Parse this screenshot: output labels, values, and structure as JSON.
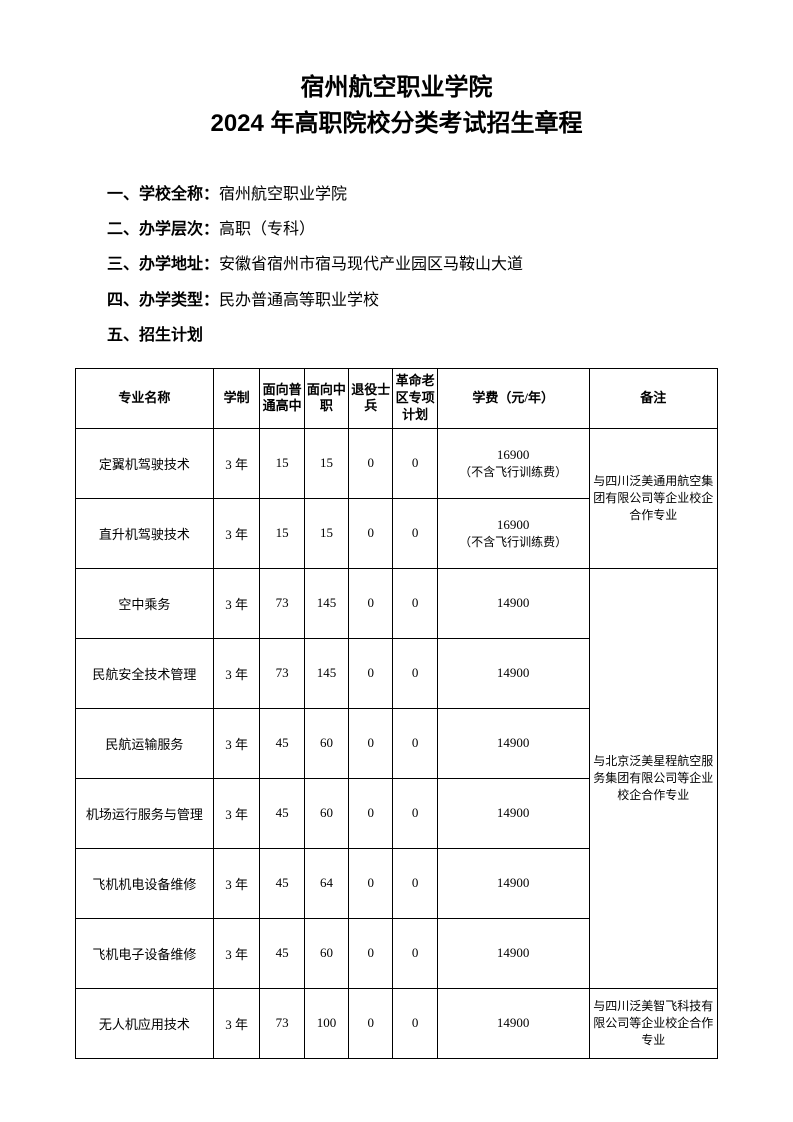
{
  "title_line1": "宿州航空职业学院",
  "title_line2": "2024 年高职院校分类考试招生章程",
  "info_items": [
    {
      "label": "一、学校全称：",
      "value": "宿州航空职业学院"
    },
    {
      "label": "二、办学层次：",
      "value": "高职（专科）"
    },
    {
      "label": "三、办学地址：",
      "value": "安徽省宿州市宿马现代产业园区马鞍山大道"
    },
    {
      "label": "四、办学类型：",
      "value": "民办普通高等职业学校"
    },
    {
      "label": "五、招生计划",
      "value": ""
    }
  ],
  "table": {
    "headers": [
      "专业名称",
      "学制",
      "面向普通高中",
      "面向中职",
      "退役士兵",
      "革命老区专项计划",
      "学费（元/年）",
      "备注"
    ],
    "rows": [
      {
        "name": "定翼机驾驶技术",
        "duration": "3 年",
        "highschool": "15",
        "vocational": "15",
        "veteran": "0",
        "revolution": "0",
        "tuition": "16900",
        "tuition_note": "（不含飞行训练费）"
      },
      {
        "name": "直升机驾驶技术",
        "duration": "3 年",
        "highschool": "15",
        "vocational": "15",
        "veteran": "0",
        "revolution": "0",
        "tuition": "16900",
        "tuition_note": "（不含飞行训练费）"
      },
      {
        "name": "空中乘务",
        "duration": "3 年",
        "highschool": "73",
        "vocational": "145",
        "veteran": "0",
        "revolution": "0",
        "tuition": "14900",
        "tuition_note": ""
      },
      {
        "name": "民航安全技术管理",
        "duration": "3 年",
        "highschool": "73",
        "vocational": "145",
        "veteran": "0",
        "revolution": "0",
        "tuition": "14900",
        "tuition_note": ""
      },
      {
        "name": "民航运输服务",
        "duration": "3 年",
        "highschool": "45",
        "vocational": "60",
        "veteran": "0",
        "revolution": "0",
        "tuition": "14900",
        "tuition_note": ""
      },
      {
        "name": "机场运行服务与管理",
        "duration": "3 年",
        "highschool": "45",
        "vocational": "60",
        "veteran": "0",
        "revolution": "0",
        "tuition": "14900",
        "tuition_note": ""
      },
      {
        "name": "飞机机电设备维修",
        "duration": "3 年",
        "highschool": "45",
        "vocational": "64",
        "veteran": "0",
        "revolution": "0",
        "tuition": "14900",
        "tuition_note": ""
      },
      {
        "name": "飞机电子设备维修",
        "duration": "3 年",
        "highschool": "45",
        "vocational": "60",
        "veteran": "0",
        "revolution": "0",
        "tuition": "14900",
        "tuition_note": ""
      },
      {
        "name": "无人机应用技术",
        "duration": "3 年",
        "highschool": "73",
        "vocational": "100",
        "veteran": "0",
        "revolution": "0",
        "tuition": "14900",
        "tuition_note": ""
      }
    ],
    "remarks": [
      {
        "rowspan": 2,
        "text": "与四川泛美通用航空集团有限公司等企业校企合作专业"
      },
      {
        "rowspan": 6,
        "text": "与北京泛美星程航空服务集团有限公司等企业校企合作专业"
      },
      {
        "rowspan": 1,
        "text": "与四川泛美智飞科技有限公司等企业校企合作专业"
      }
    ]
  }
}
